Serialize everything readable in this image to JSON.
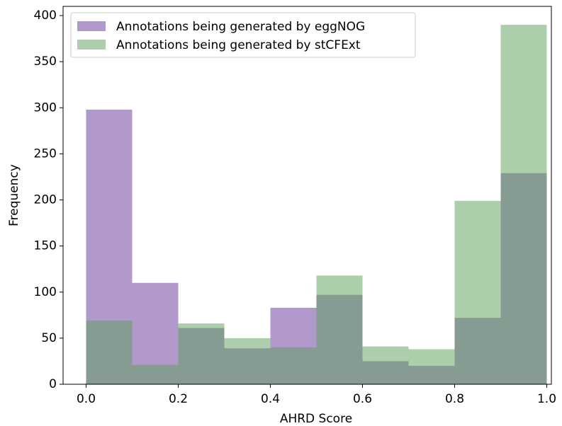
{
  "chart_data": {
    "type": "histogram",
    "xlabel": "AHRD Score",
    "ylabel": "Frequency",
    "bins": [
      0,
      0.1,
      0.2,
      0.3,
      0.4,
      0.5,
      0.6,
      0.7,
      0.8,
      0.9,
      1
    ],
    "series": [
      {
        "name": "Annotations being generated by eggNOG",
        "color": "#663399",
        "values": [
          298,
          110,
          61,
          39,
          83,
          97,
          25,
          20,
          72,
          229
        ]
      },
      {
        "name": "Annotations being generated by stCFExt",
        "color": "#5a9e57",
        "values": [
          69,
          21,
          66,
          50,
          40,
          118,
          41,
          38,
          199,
          390
        ]
      }
    ],
    "opacity": 0.5,
    "xlim": [
      -0.05,
      1.01
    ],
    "ylim": [
      0,
      410
    ],
    "xticks": [
      {
        "value": 0,
        "label": "0.0"
      },
      0.2,
      0.4,
      0.6,
      0.8,
      {
        "value": 1,
        "label": "1.0"
      }
    ],
    "yticks": [
      0,
      50,
      100,
      150,
      200,
      250,
      300,
      350,
      400
    ],
    "legend": "upper left"
  }
}
